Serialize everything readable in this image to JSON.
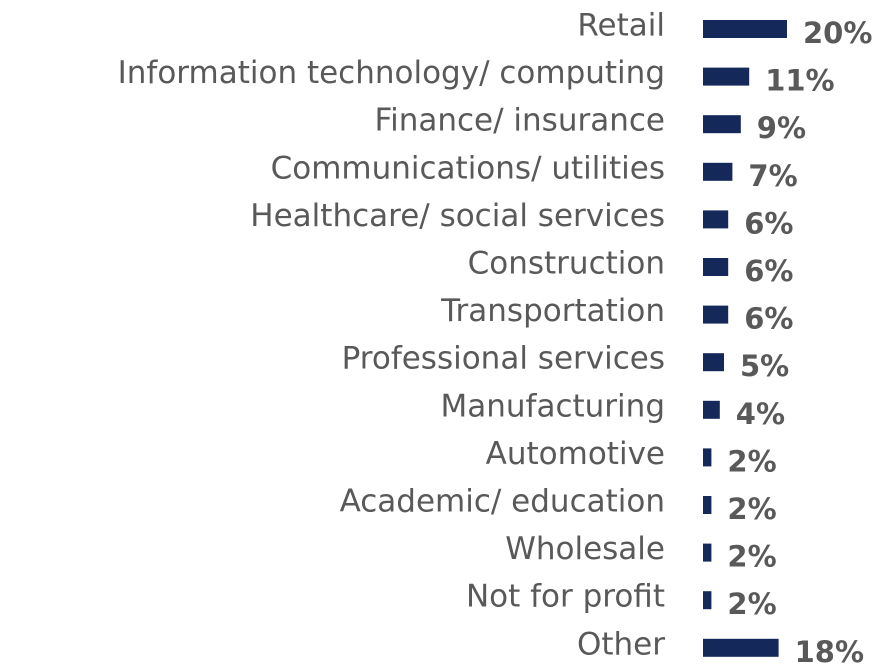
{
  "chart_data": {
    "type": "bar",
    "orientation": "horizontal",
    "color": "#14295a",
    "categories": [
      "Retail",
      "Information technology/ computing",
      "Finance/ insurance",
      "Communications/ utilities",
      "Healthcare/ social services",
      "Construction",
      "Transportation",
      "Professional services",
      "Manufacturing",
      "Automotive",
      "Academic/ education",
      "Wholesale",
      "Not for profit",
      "Other"
    ],
    "values": [
      20,
      11,
      9,
      7,
      6,
      6,
      6,
      5,
      4,
      2,
      2,
      2,
      2,
      18
    ],
    "value_labels": [
      "20%",
      "11%",
      "9%",
      "7%",
      "6%",
      "6%",
      "6%",
      "5%",
      "4%",
      "2%",
      "2%",
      "2%",
      "2%",
      "18%"
    ]
  }
}
